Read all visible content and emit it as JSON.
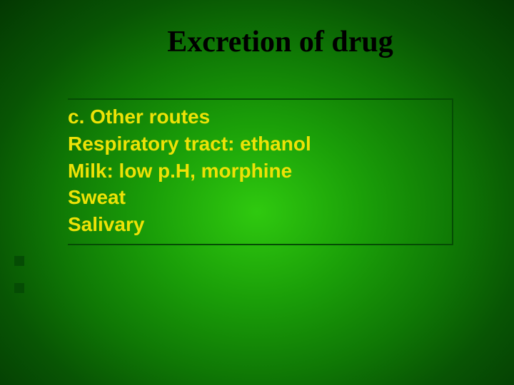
{
  "slide": {
    "title": "Excretion of drug",
    "lines": [
      "c. Other routes",
      "Respiratory tract: ethanol",
      "Milk: low p.H, morphine",
      "Sweat",
      "Salivary"
    ],
    "title_color": "#000000",
    "title_fontsize": 42,
    "title_font": "Times New Roman",
    "body_color": "#ede207",
    "body_fontsize": 28,
    "body_font": "Arial",
    "body_weight": "bold",
    "border_color": "#054c04",
    "background_gradient": {
      "type": "radial",
      "stops": [
        "#2fc90f",
        "#1a9e08",
        "#0f7805",
        "#085504",
        "#033802"
      ]
    },
    "bullet_color": "#054c04",
    "bullet_size": 14
  }
}
